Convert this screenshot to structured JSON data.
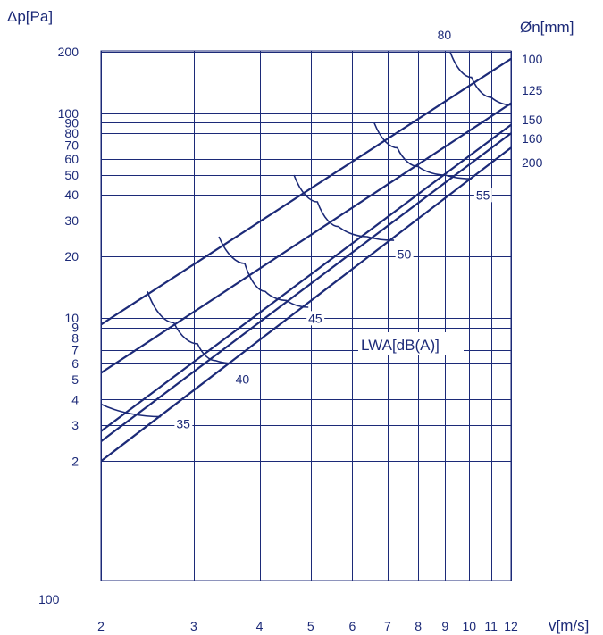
{
  "chart_data": {
    "type": "line",
    "xscale": "log",
    "yscale": "log",
    "xlim": [
      2,
      12
    ],
    "ylim": [
      1,
      200
    ],
    "ylabel": "Δp[Pa]",
    "xlabel": "v[m/s]",
    "right_label": "Øn[mm]",
    "curve_family_label": "LWA[dB(A)]",
    "x_ticks": [
      2,
      3,
      4,
      5,
      6,
      7,
      8,
      9,
      10,
      11,
      12
    ],
    "y_ticks": [
      2,
      3,
      4,
      5,
      6,
      7,
      8,
      9,
      10,
      20,
      30,
      40,
      50,
      60,
      70,
      80,
      90,
      100,
      200
    ],
    "y_bottom_label": "100",
    "grid": true,
    "series": [
      {
        "name": "100",
        "x": [
          2,
          12
        ],
        "y": [
          9.3,
          185
        ]
      },
      {
        "name": "125",
        "x": [
          2,
          12
        ],
        "y": [
          5.4,
          112
        ]
      },
      {
        "name": "150",
        "x": [
          2,
          12
        ],
        "y": [
          2.8,
          88
        ]
      },
      {
        "name": "160",
        "x": [
          2,
          12
        ],
        "y": [
          2.5,
          80
        ]
      },
      {
        "name": "200",
        "x": [
          2,
          12
        ],
        "y": [
          2.0,
          68
        ]
      }
    ],
    "sound_curves": [
      {
        "name": "35",
        "x": [
          2.0,
          2.6
        ],
        "y": [
          3.8,
          3.3
        ]
      },
      {
        "name": "40",
        "x": [
          2.45,
          2.75,
          3.05,
          3.3,
          3.6
        ],
        "y": [
          13.5,
          9.5,
          7.5,
          6.2,
          6.0
        ]
      },
      {
        "name": "45",
        "x": [
          3.35,
          3.75,
          4.1,
          4.5,
          4.95
        ],
        "y": [
          25,
          18.5,
          13.5,
          12.2,
          11.3
        ]
      },
      {
        "name": "50",
        "x": [
          4.65,
          5.15,
          5.65,
          6.4,
          7.2
        ],
        "y": [
          50,
          37,
          28,
          25,
          24
        ]
      },
      {
        "name": "55",
        "x": [
          6.6,
          7.3,
          8.0,
          9.0,
          10.1
        ],
        "y": [
          90,
          68,
          55,
          50,
          48
        ]
      },
      {
        "name": "80",
        "x": [
          9.2,
          10.1,
          11.0,
          12.0
        ],
        "y": [
          200,
          150,
          120,
          110
        ]
      }
    ]
  }
}
